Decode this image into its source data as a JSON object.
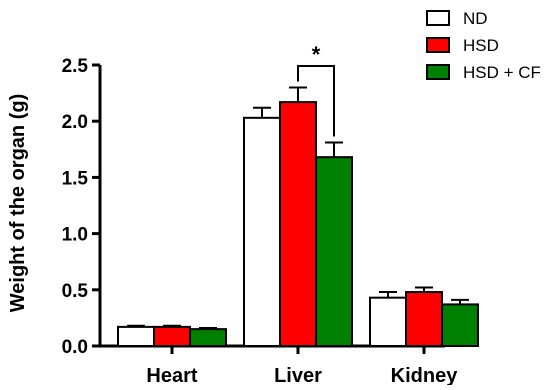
{
  "chart_data": {
    "type": "bar",
    "title": "",
    "xlabel": "",
    "ylabel": "Weight of the organ (g)",
    "categories": [
      "Heart",
      "Liver",
      "Kidney"
    ],
    "ylim": [
      0,
      2.5
    ],
    "yticks": [
      0.0,
      0.5,
      1.0,
      1.5,
      2.0,
      2.5
    ],
    "ytick_labels": [
      "0.0",
      "0.5",
      "1.0",
      "1.5",
      "2.0",
      "2.5"
    ],
    "grid": false,
    "legend_position": "top-right",
    "series": [
      {
        "name": "ND",
        "color": "#ffffff",
        "values": [
          0.17,
          2.03,
          0.43
        ],
        "errors": [
          0.01,
          0.09,
          0.05
        ]
      },
      {
        "name": "HSD",
        "color": "#ff0000",
        "values": [
          0.17,
          2.17,
          0.48
        ],
        "errors": [
          0.01,
          0.13,
          0.04
        ]
      },
      {
        "name": "HSD + CF",
        "color": "#008000",
        "values": [
          0.15,
          1.68,
          0.37
        ],
        "errors": [
          0.01,
          0.13,
          0.04
        ]
      }
    ],
    "annotations": [
      {
        "text": "*",
        "category": "Liver",
        "between_series": [
          "HSD",
          "HSD + CF"
        ]
      }
    ]
  }
}
